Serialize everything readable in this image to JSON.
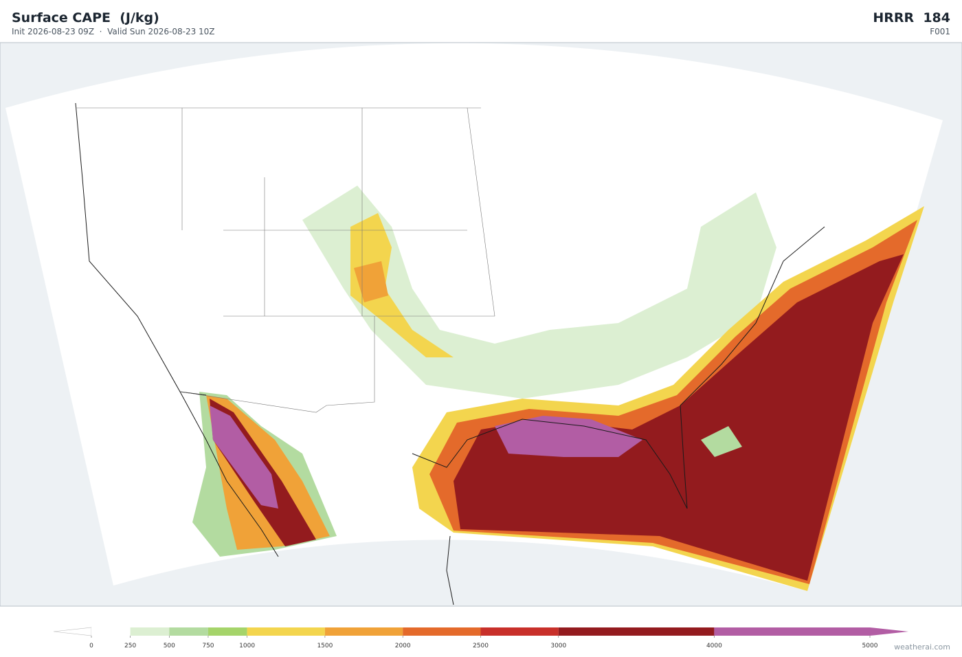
{
  "header": {
    "title": "Surface CAPE  (J/kg)",
    "subtitle": "Init 2026-08-23 09Z  ·  Valid Sun 2026-08-23 10Z",
    "model": "HRRR  184",
    "run": "F001"
  },
  "colorbar": {
    "ticks": [
      0,
      250,
      500,
      750,
      1000,
      1500,
      2000,
      2500,
      3000,
      4000,
      5000
    ],
    "colors": [
      "#ffffff",
      "#dcefd2",
      "#b3dba0",
      "#a5d46a",
      "#f3d54e",
      "#f0a238",
      "#e46a2b",
      "#c8302a",
      "#931b1e",
      "#b25da4"
    ]
  },
  "footer": {
    "credit": "weatherai.com"
  }
}
